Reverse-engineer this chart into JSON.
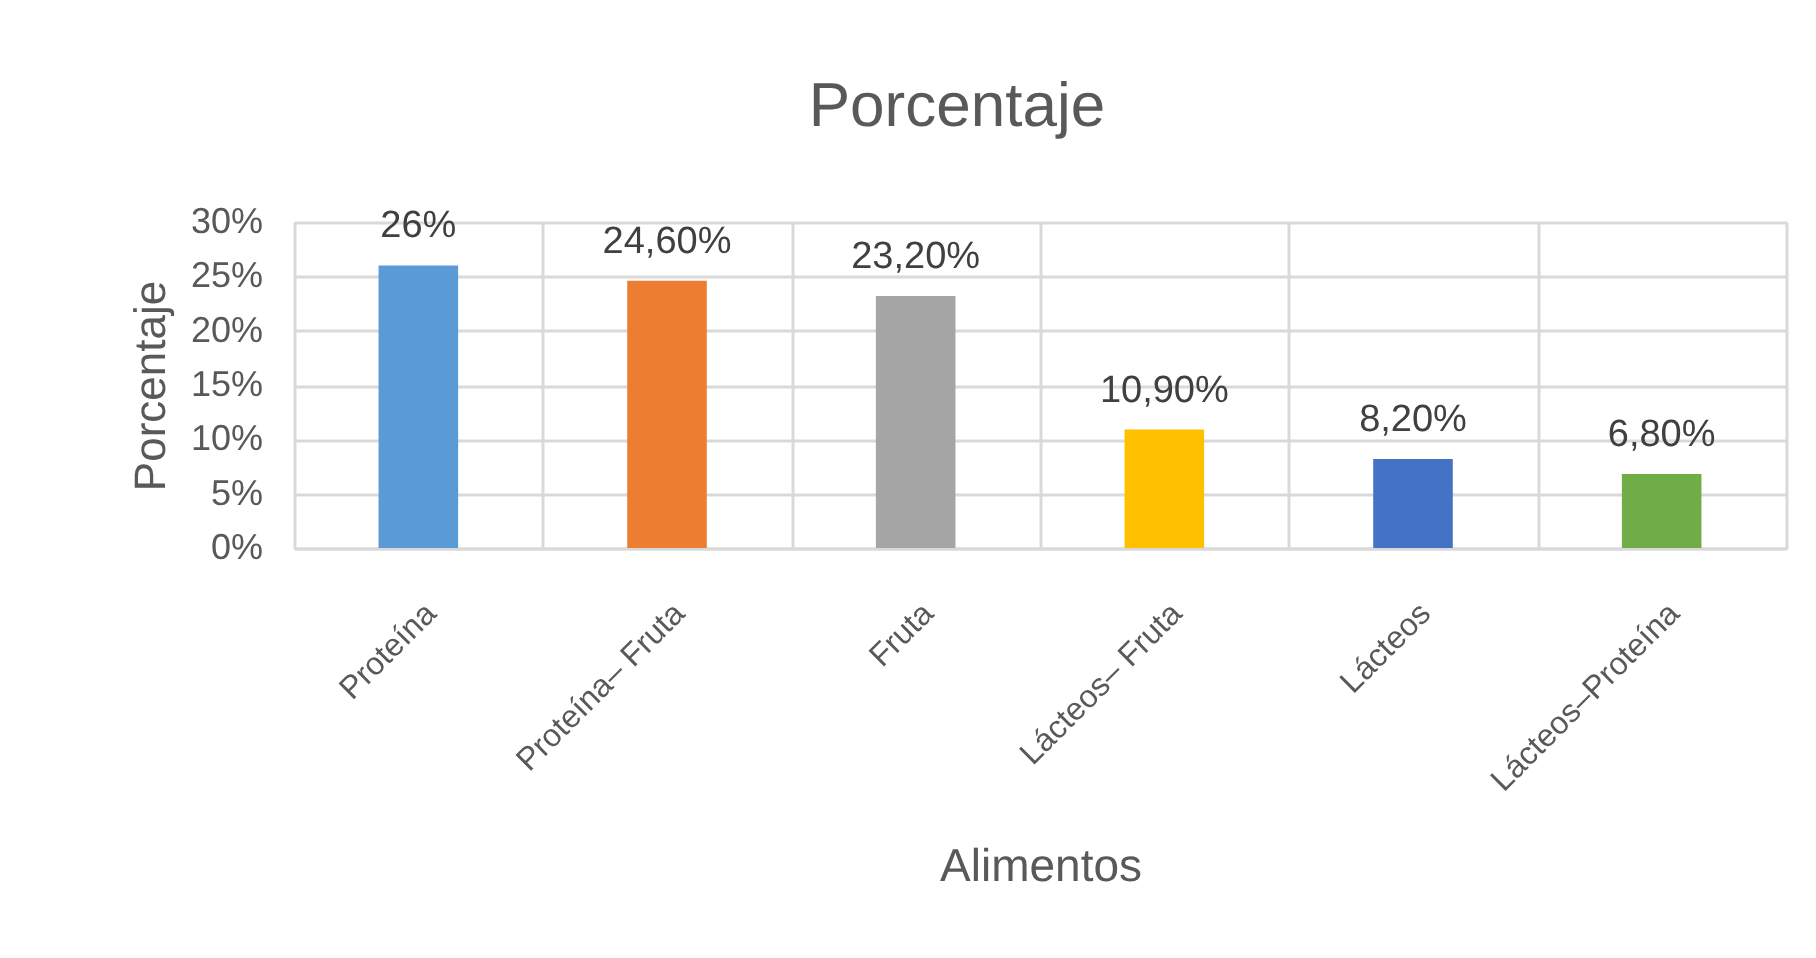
{
  "chart_data": {
    "type": "bar",
    "title": "Porcentaje",
    "xlabel": "Alimentos",
    "ylabel": "Porcentaje",
    "categories": [
      "Proteína",
      "Proteína– Fruta",
      "Fruta",
      "Lácteos– Fruta",
      "Lácteos",
      "Lácteos–Proteína"
    ],
    "values": [
      26,
      24.6,
      23.2,
      10.9,
      8.2,
      6.8
    ],
    "colors": [
      "#5b9bd5",
      "#ed7d31",
      "#a5a5a5",
      "#ffc000",
      "#4472c4",
      "#70ad47"
    ],
    "value_labels": [
      "26%",
      "24,60%",
      "23,20%",
      "10,90%",
      "8,20%",
      "6,80%"
    ],
    "ylim": [
      0,
      30
    ],
    "yticks": [
      {
        "value": 0,
        "label": "0%"
      },
      {
        "value": 5,
        "label": "5%"
      },
      {
        "value": 10,
        "label": "10%"
      },
      {
        "value": 15,
        "label": "15%"
      },
      {
        "value": 20,
        "label": "20%"
      },
      {
        "value": 25,
        "label": "25%"
      },
      {
        "value": 30,
        "label": "30%"
      }
    ],
    "grid": true
  }
}
